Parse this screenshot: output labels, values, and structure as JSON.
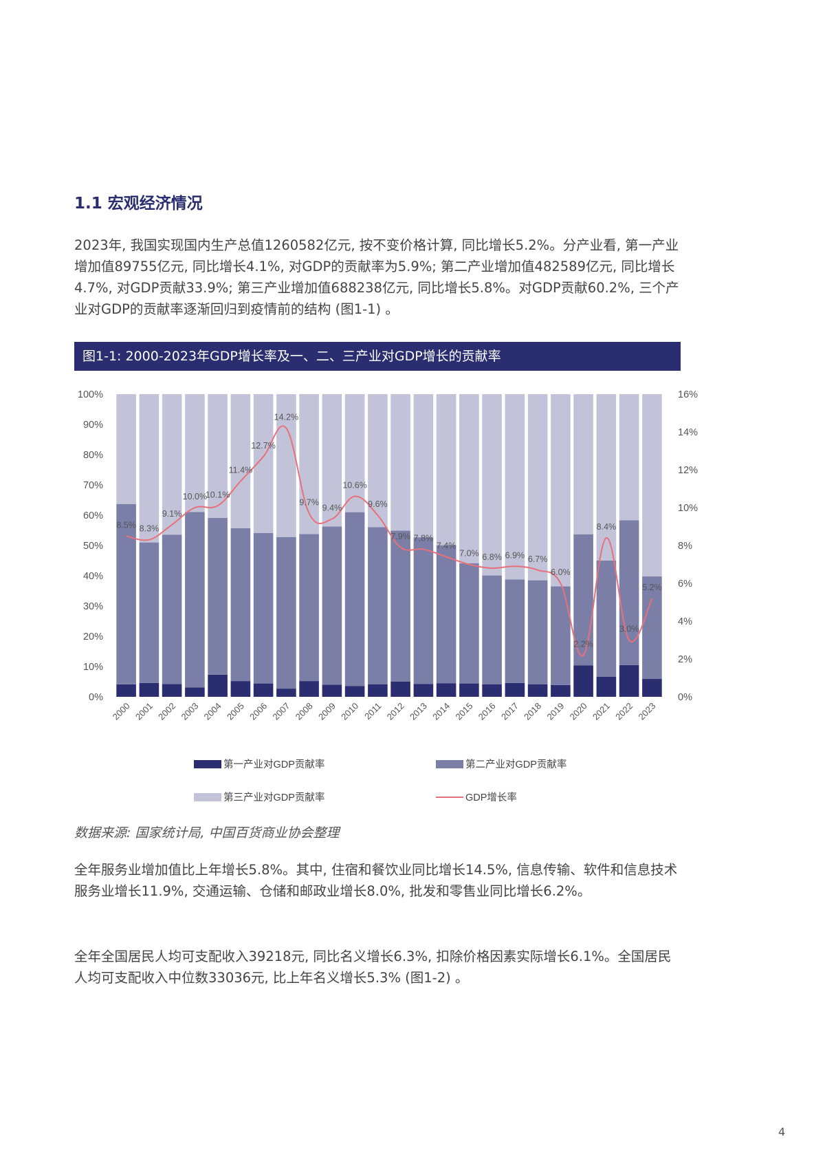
{
  "section": {
    "title": "1.1 宏观经济情况"
  },
  "paragraphs": {
    "p1": "2023年, 我国实现国内生产总值1260582亿元, 按不变价格计算, 同比增长5.2%。分产业看, 第一产业增加值89755亿元, 同比增长4.1%, 对GDP的贡献率为5.9%; 第二产业增加值482589亿元, 同比增长4.7%, 对GDP贡献33.9%; 第三产业增加值688238亿元, 同比增长5.8%。对GDP贡献60.2%, 三个产业对GDP的贡献率逐渐回归到疫情前的结构 (图1-1) 。",
    "p2": "全年服务业增加值比上年增长5.8%。其中, 住宿和餐饮业同比增长14.5%, 信息传输、软件和信息技术服务业增长11.9%, 交通运输、仓储和邮政业增长8.0%, 批发和零售业同比增长6.2%。",
    "p3": "全年全国居民人均可支配收入39218元, 同比名义增长6.3%, 扣除价格因素实际增长6.1%。全国居民人均可支配收入中位数33036元, 比上年名义增长5.3% (图1-2) 。"
  },
  "figure": {
    "banner": "图1-1: 2000-2023年GDP增长率及一、二、三产业对GDP增长的贡献率",
    "source": "数据来源: 国家统计局, 中国百货商业协会整理"
  },
  "page_number": "4",
  "chart_data": {
    "type": "bar",
    "stacked": true,
    "categories": [
      "2000",
      "2001",
      "2002",
      "2003",
      "2004",
      "2005",
      "2006",
      "2007",
      "2008",
      "2009",
      "2010",
      "2011",
      "2012",
      "2013",
      "2014",
      "2015",
      "2016",
      "2017",
      "2018",
      "2019",
      "2020",
      "2021",
      "2022",
      "2023"
    ],
    "series": [
      {
        "name": "第一产业对GDP贡献率",
        "color": "#2a2d70",
        "axis": "left",
        "values": [
          4.1,
          4.6,
          4.2,
          3.1,
          7.3,
          5.2,
          4.4,
          2.7,
          5.2,
          4.0,
          3.6,
          4.1,
          5.0,
          4.2,
          4.5,
          4.4,
          4.1,
          4.6,
          4.1,
          3.9,
          10.4,
          6.6,
          10.5,
          5.9
        ]
      },
      {
        "name": "第二产业对GDP贡献率",
        "color": "#7b7fa8",
        "axis": "left",
        "values": [
          59.6,
          46.4,
          49.4,
          58.0,
          51.8,
          50.5,
          49.7,
          50.1,
          48.6,
          52.3,
          57.4,
          52.0,
          49.9,
          48.5,
          45.6,
          39.7,
          36.0,
          34.2,
          34.4,
          32.6,
          43.3,
          38.4,
          47.8,
          33.9
        ]
      },
      {
        "name": "第三产业对GDP贡献率",
        "color": "#c2c3d9",
        "axis": "left",
        "values": [
          36.3,
          49.0,
          46.4,
          38.9,
          40.9,
          44.3,
          45.9,
          47.2,
          46.2,
          43.7,
          39.0,
          43.9,
          45.1,
          47.3,
          49.9,
          55.9,
          59.9,
          61.2,
          61.5,
          63.5,
          46.3,
          55.0,
          41.7,
          60.2
        ]
      },
      {
        "name": "GDP增长率",
        "color": "#e8707a",
        "type": "line",
        "axis": "right",
        "values": [
          8.5,
          8.3,
          9.1,
          10.0,
          10.1,
          11.4,
          12.7,
          14.2,
          9.7,
          9.4,
          10.6,
          9.6,
          7.9,
          7.8,
          7.4,
          7.0,
          6.8,
          6.9,
          6.7,
          6.0,
          2.2,
          8.4,
          3.0,
          5.2
        ],
        "labels": [
          "8.5%",
          "8.3%",
          "9.1%",
          "10.0%",
          "10.1%",
          "11.4%",
          "12.7%",
          "14.2%",
          "9.7%",
          "9.4%",
          "10.6%",
          "9.6%",
          "7.9%",
          "7.8%",
          "7.4%",
          "7.0%",
          "6.8%",
          "6.9%",
          "6.7%",
          "6.0%",
          "2.2%",
          "8.4%",
          "3.0%",
          "5.2%"
        ]
      }
    ],
    "y_left": {
      "ylim": [
        0,
        100
      ],
      "ticks": [
        "0%",
        "10%",
        "20%",
        "30%",
        "40%",
        "50%",
        "60%",
        "70%",
        "80%",
        "90%",
        "100%"
      ]
    },
    "y_right": {
      "ylim": [
        0,
        16
      ],
      "ticks": [
        "0%",
        "2%",
        "4%",
        "6%",
        "8%",
        "10%",
        "12%",
        "14%",
        "16%"
      ]
    },
    "grid": false,
    "legend": "bottom"
  }
}
